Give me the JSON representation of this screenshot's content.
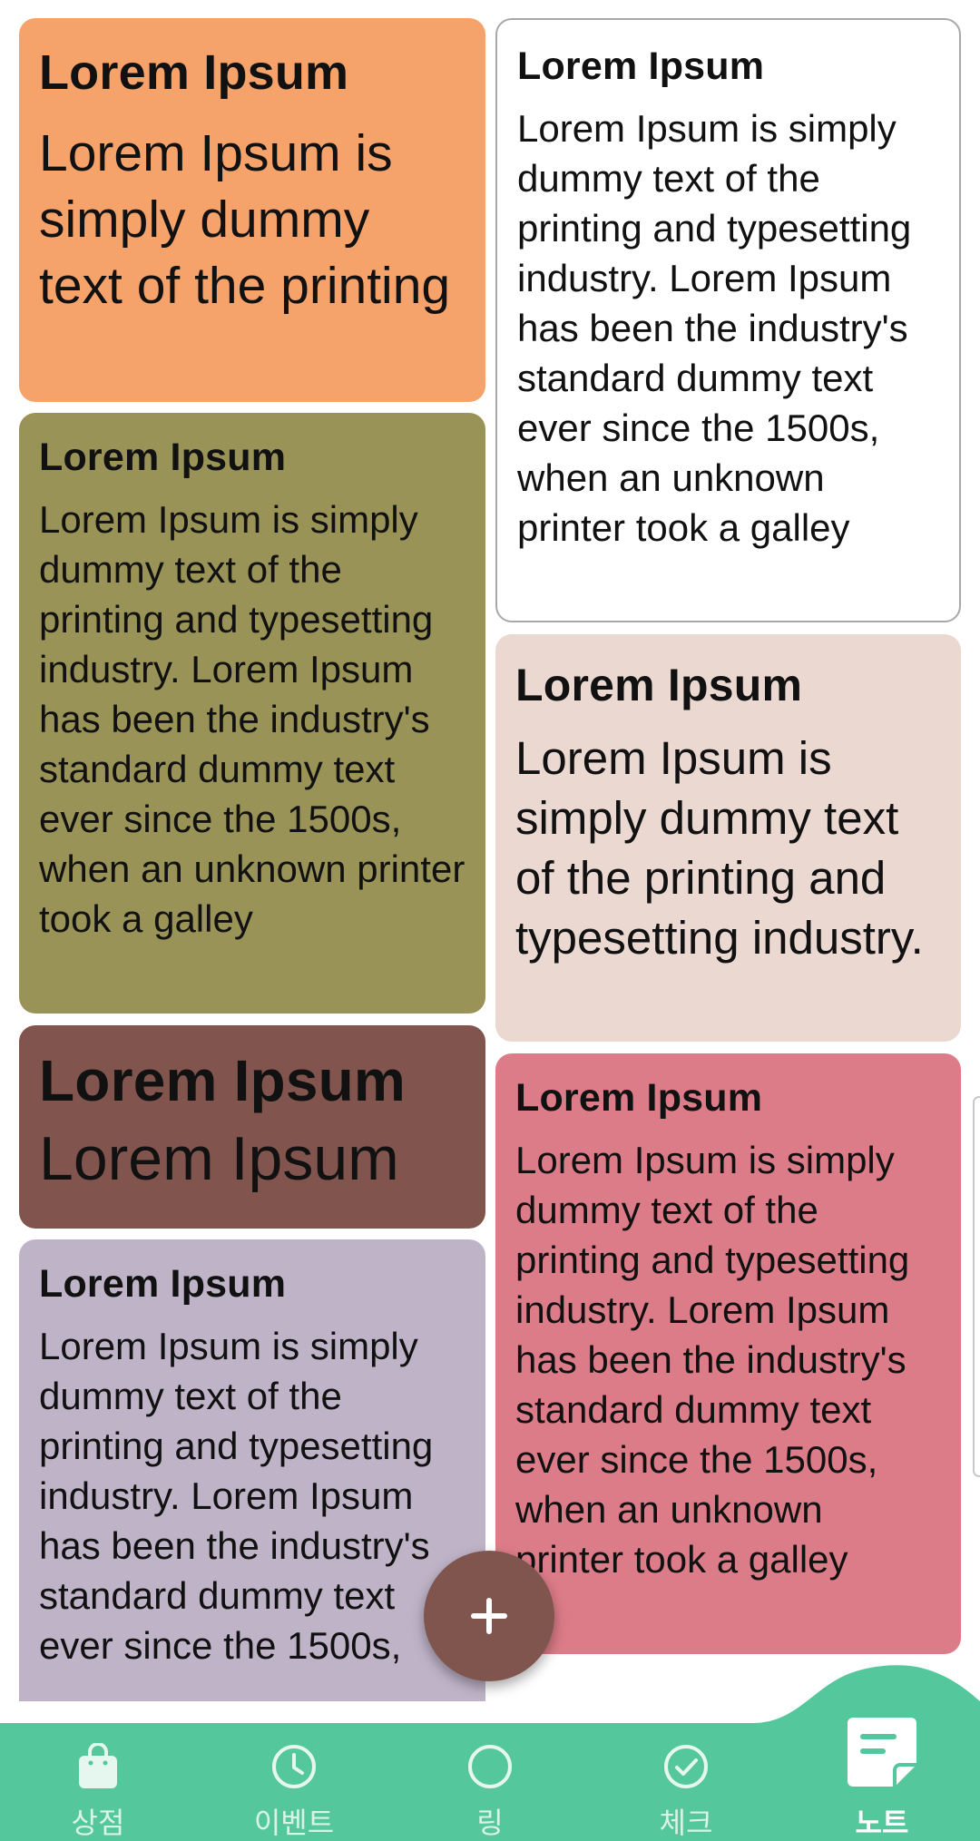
{
  "colors": {
    "card_1": "#f6a36b",
    "card_2": "#ffffff",
    "card_3": "#9a9357",
    "card_4": "#ead8d1",
    "card_5": "#81554d",
    "card_6": "#dd7c89",
    "card_7": "#bfb3c8",
    "fab": "#7f554d",
    "nav_bar": "#55c79c",
    "nav_icon": "#e6f7f0"
  },
  "notes": [
    {
      "title": "Lorem Ipsum",
      "body": "Lorem Ipsum is simply dummy text of the printing"
    },
    {
      "title": "Lorem Ipsum",
      "body": "Lorem Ipsum is simply dummy text of the printing and typesetting industry. Lorem Ipsum has been the industry's standard dummy text ever since the 1500s, when an unknown printer took a galley"
    },
    {
      "title": "Lorem Ipsum",
      "body": "Lorem Ipsum is simply dummy text of the printing and typesetting industry. Lorem Ipsum has been the industry's standard dummy text ever since the 1500s, when an unknown printer took a galley"
    },
    {
      "title": "Lorem Ipsum",
      "body": "Lorem Ipsum is simply dummy text of the printing and typesetting industry."
    },
    {
      "title": "Lorem Ipsum",
      "body": "Lorem Ipsum"
    },
    {
      "title": "Lorem Ipsum",
      "body": "Lorem Ipsum is simply dummy text of the printing and typesetting industry. Lorem Ipsum has been the industry's standard dummy text ever since the 1500s, when an unknown printer took a galley"
    },
    {
      "title": "Lorem Ipsum",
      "body": "Lorem Ipsum is simply dummy text of the printing and typesetting industry. Lorem Ipsum has been the industry's standard dummy text ever since the 1500s,"
    }
  ],
  "fab": {
    "icon": "plus-icon"
  },
  "bottom_nav": {
    "items": [
      {
        "label": "상점",
        "icon": "shopping-bag-icon",
        "active": false
      },
      {
        "label": "이벤트",
        "icon": "clock-icon",
        "active": false
      },
      {
        "label": "링",
        "icon": "ring-icon",
        "active": false
      },
      {
        "label": "체크",
        "icon": "check-circle-icon",
        "active": false
      },
      {
        "label": "노트",
        "icon": "note-icon",
        "active": true
      }
    ]
  }
}
